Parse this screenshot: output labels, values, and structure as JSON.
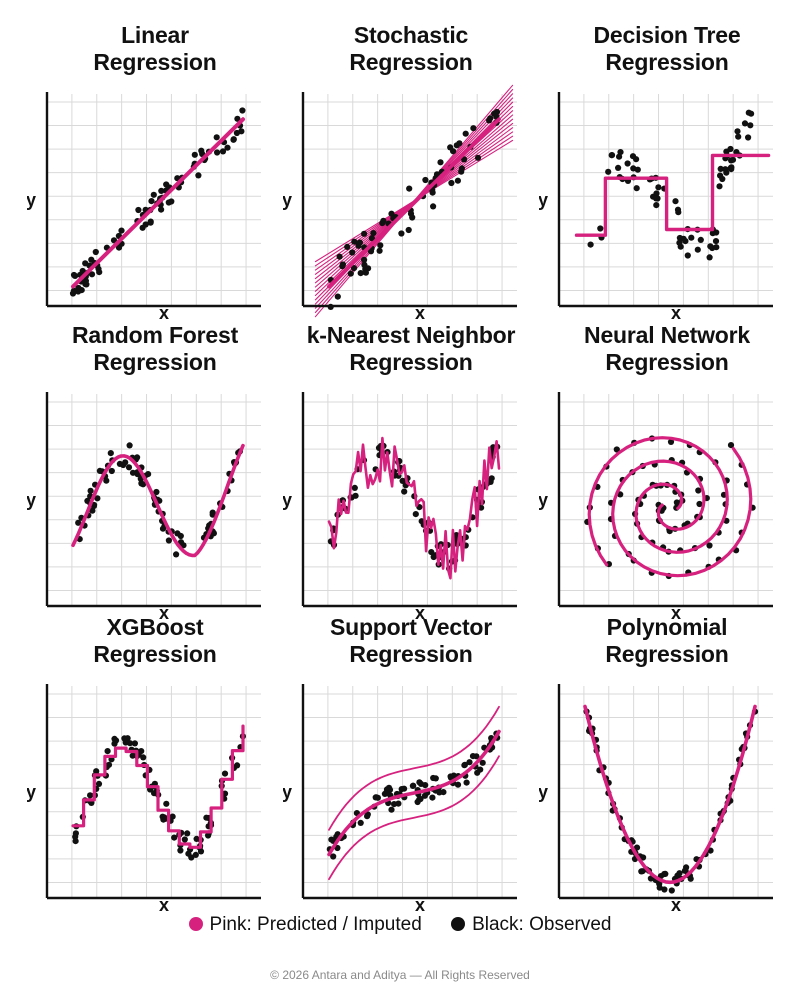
{
  "colors": {
    "predicted": "#d6217f",
    "observed": "#111111",
    "grid": "#d9d9d9",
    "axis": "#111111"
  },
  "legend": {
    "predicted_label": "Pink: Predicted / Imputed",
    "observed_label": "Black: Observed"
  },
  "footer": {
    "text": "© 2026 Antara and Aditya — All Rights Reserved"
  },
  "chart_data": [
    {
      "type": "scatter",
      "title": [
        "Linear",
        "Regression"
      ],
      "xlabel": "x",
      "ylabel": "y",
      "model": "linear",
      "grid": true,
      "xlim": [
        0,
        1
      ],
      "ylim": [
        0,
        1
      ]
    },
    {
      "type": "scatter",
      "title": [
        "Stochastic",
        "Regression"
      ],
      "xlabel": "x",
      "ylabel": "y",
      "model": "stochastic",
      "grid": true,
      "xlim": [
        0,
        1
      ],
      "ylim": [
        0,
        1
      ]
    },
    {
      "type": "scatter",
      "title": [
        "Decision Tree",
        "Regression"
      ],
      "xlabel": "x",
      "ylabel": "y",
      "model": "tree",
      "grid": true,
      "xlim": [
        0,
        1
      ],
      "ylim": [
        0,
        1
      ]
    },
    {
      "type": "scatter",
      "title": [
        "Random Forest",
        "Regression"
      ],
      "xlabel": "x",
      "ylabel": "y",
      "model": "forest",
      "grid": true,
      "xlim": [
        0,
        1
      ],
      "ylim": [
        0,
        1
      ]
    },
    {
      "type": "scatter",
      "title": [
        "k-Nearest Neighbor",
        "Regression"
      ],
      "xlabel": "x",
      "ylabel": "y",
      "model": "knn",
      "grid": true,
      "xlim": [
        0,
        1
      ],
      "ylim": [
        0,
        1
      ]
    },
    {
      "type": "scatter",
      "title": [
        "Neural Network",
        "Regression"
      ],
      "xlabel": "x",
      "ylabel": "y",
      "model": "spiral",
      "grid": true,
      "xlim": [
        0,
        1
      ],
      "ylim": [
        0,
        1
      ]
    },
    {
      "type": "scatter",
      "title": [
        "XGBoost",
        "Regression"
      ],
      "xlabel": "x",
      "ylabel": "y",
      "model": "xgboost",
      "grid": true,
      "xlim": [
        0,
        1
      ],
      "ylim": [
        0,
        1
      ]
    },
    {
      "type": "scatter",
      "title": [
        "Support Vector",
        "Regression"
      ],
      "xlabel": "x",
      "ylabel": "y",
      "model": "svr",
      "grid": true,
      "xlim": [
        0,
        1
      ],
      "ylim": [
        0,
        1
      ]
    },
    {
      "type": "scatter",
      "title": [
        "Polynomial",
        "Regression"
      ],
      "xlabel": "x",
      "ylabel": "y",
      "model": "polynomial",
      "grid": true,
      "xlim": [
        0,
        1
      ],
      "ylim": [
        0,
        1
      ]
    }
  ]
}
